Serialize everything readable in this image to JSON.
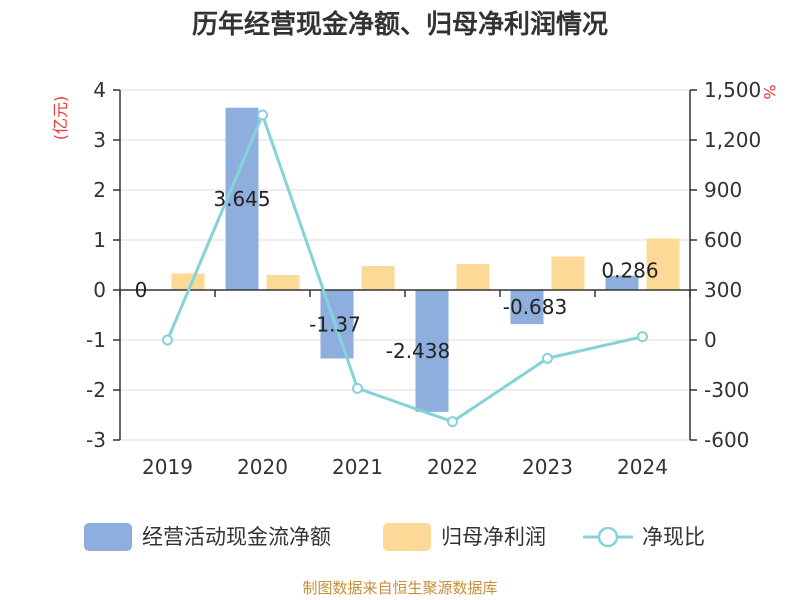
{
  "chart_data": {
    "type": "bar",
    "title": "历年经营现金净额、归母净利润情况",
    "left_unit": "(亿元)",
    "right_unit": "%",
    "categories": [
      "2019",
      "2020",
      "2021",
      "2022",
      "2023",
      "2024"
    ],
    "left_axis": {
      "ylim": [
        -3,
        4
      ],
      "ticks": [
        "4",
        "3",
        "2",
        "1",
        "0",
        "-1",
        "-2",
        "-3"
      ]
    },
    "right_axis": {
      "ylim": [
        -600,
        1500
      ],
      "ticks": [
        "1,500",
        "1,200",
        "900",
        "600",
        "300",
        "0",
        "-300",
        "-600"
      ]
    },
    "series": [
      {
        "name": "经营活动现金流净额",
        "type": "bar",
        "axis": "left",
        "color": "#8eaedd",
        "values": [
          0,
          3.645,
          -1.37,
          -2.438,
          -0.683,
          0.286
        ],
        "labels": [
          "0",
          "3.645",
          "-1.37",
          "-2.438",
          "-0.683",
          "0.286"
        ]
      },
      {
        "name": "归母净利润",
        "type": "bar",
        "axis": "left",
        "color": "#fdd998",
        "values": [
          0.33,
          0.3,
          0.48,
          0.52,
          0.67,
          1.03
        ]
      },
      {
        "name": "净现比",
        "type": "line",
        "axis": "right",
        "color": "#85d3d8",
        "values": [
          0,
          1350,
          -290,
          -490,
          -110,
          20
        ]
      }
    ],
    "legend_position": "bottom",
    "source": "制图数据来自恒生聚源数据库"
  }
}
